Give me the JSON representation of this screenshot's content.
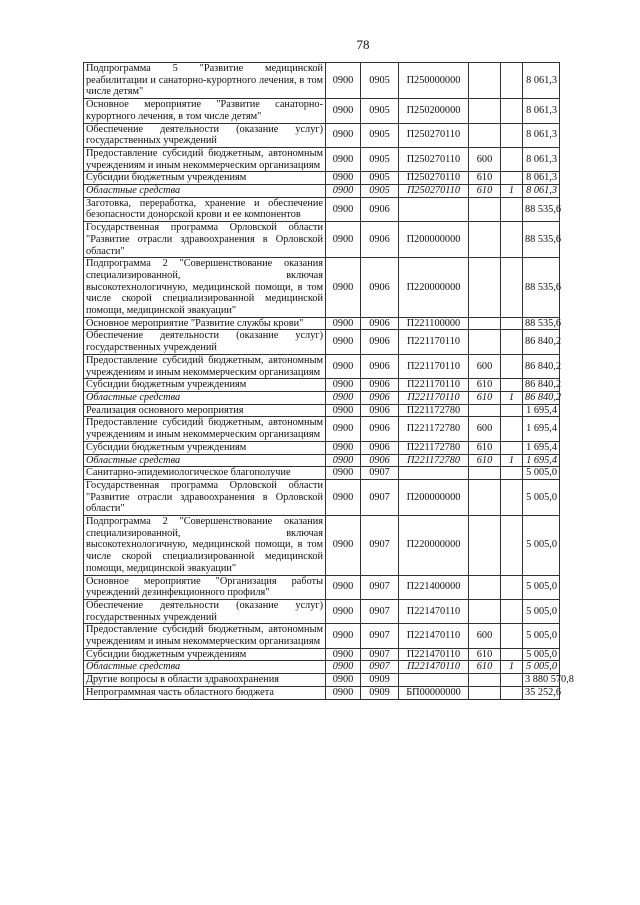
{
  "page_number": "78",
  "rows": [
    {
      "name": "Подпрограмма 5 \"Развитие медицинской реабилитации и санаторно-курортного лечения, в том числе детям\"",
      "gr": "0900",
      "rz": "0905",
      "csr": "П250000000",
      "vr": "",
      "src": "",
      "amount": "8 061,3"
    },
    {
      "name": "Основное мероприятие \"Развитие санаторно-курортного лечения, в том числе детям\"",
      "gr": "0900",
      "rz": "0905",
      "csr": "П250200000",
      "vr": "",
      "src": "",
      "amount": "8 061,3"
    },
    {
      "name": "Обеспечение деятельности (оказание услуг) государственных учреждений",
      "gr": "0900",
      "rz": "0905",
      "csr": "П250270110",
      "vr": "",
      "src": "",
      "amount": "8 061,3"
    },
    {
      "name": "Предоставление субсидий бюджетным, автономным учреждениям и иным некоммерческим организациям",
      "gr": "0900",
      "rz": "0905",
      "csr": "П250270110",
      "vr": "600",
      "src": "",
      "amount": "8 061,3"
    },
    {
      "name": "Субсидии бюджетным учреждениям",
      "gr": "0900",
      "rz": "0905",
      "csr": "П250270110",
      "vr": "610",
      "src": "",
      "amount": "8 061,3"
    },
    {
      "name": "Областные средства",
      "gr": "0900",
      "rz": "0905",
      "csr": "П250270110",
      "vr": "610",
      "src": "1",
      "amount": "8 061,3",
      "italic": true
    },
    {
      "name": "Заготовка, переработка, хранение и обеспечение безопасности донорской крови и ее компонентов",
      "gr": "0900",
      "rz": "0906",
      "csr": "",
      "vr": "",
      "src": "",
      "amount": "88 535,6"
    },
    {
      "name": "Государственная программа Орловской области \"Развитие отрасли здравоохранения в Орловской области\"",
      "gr": "0900",
      "rz": "0906",
      "csr": "П200000000",
      "vr": "",
      "src": "",
      "amount": "88 535,6"
    },
    {
      "name": "Подпрограмма 2 \"Совершенствование оказания специализированной, включая высокотехнологичную, медицинской помощи, в том числе скорой специализированной медицинской помощи, медицинской эвакуации\"",
      "gr": "0900",
      "rz": "0906",
      "csr": "П220000000",
      "vr": "",
      "src": "",
      "amount": "88 535,6"
    },
    {
      "name": "Основное мероприятие \"Развитие службы крови\"",
      "gr": "0900",
      "rz": "0906",
      "csr": "П221100000",
      "vr": "",
      "src": "",
      "amount": "88 535,6"
    },
    {
      "name": "Обеспечение деятельности (оказание услуг) государственных учреждений",
      "gr": "0900",
      "rz": "0906",
      "csr": "П221170110",
      "vr": "",
      "src": "",
      "amount": "86 840,2"
    },
    {
      "name": "Предоставление субсидий бюджетным, автономным учреждениям и иным некоммерческим организациям",
      "gr": "0900",
      "rz": "0906",
      "csr": "П221170110",
      "vr": "600",
      "src": "",
      "amount": "86 840,2"
    },
    {
      "name": "Субсидии бюджетным учреждениям",
      "gr": "0900",
      "rz": "0906",
      "csr": "П221170110",
      "vr": "610",
      "src": "",
      "amount": "86 840,2"
    },
    {
      "name": "Областные средства",
      "gr": "0900",
      "rz": "0906",
      "csr": "П221170110",
      "vr": "610",
      "src": "1",
      "amount": "86 840,2",
      "italic": true
    },
    {
      "name": "Реализация основного мероприятия",
      "gr": "0900",
      "rz": "0906",
      "csr": "П221172780",
      "vr": "",
      "src": "",
      "amount": "1 695,4"
    },
    {
      "name": "Предоставление субсидий бюджетным, автономным учреждениям и иным некоммерческим организациям",
      "gr": "0900",
      "rz": "0906",
      "csr": "П221172780",
      "vr": "600",
      "src": "",
      "amount": "1 695,4"
    },
    {
      "name": "Субсидии бюджетным учреждениям",
      "gr": "0900",
      "rz": "0906",
      "csr": "П221172780",
      "vr": "610",
      "src": "",
      "amount": "1 695,4"
    },
    {
      "name": "Областные средства",
      "gr": "0900",
      "rz": "0906",
      "csr": "П221172780",
      "vr": "610",
      "src": "1",
      "amount": "1 695,4",
      "italic": true
    },
    {
      "name": "Санитарно-эпидемиологическое благополучие",
      "gr": "0900",
      "rz": "0907",
      "csr": "",
      "vr": "",
      "src": "",
      "amount": "5 005,0"
    },
    {
      "name": "Государственная программа Орловской области \"Развитие отрасли здравоохранения в Орловской области\"",
      "gr": "0900",
      "rz": "0907",
      "csr": "П200000000",
      "vr": "",
      "src": "",
      "amount": "5 005,0"
    },
    {
      "name": "Подпрограмма 2 \"Совершенствование оказания специализированной, включая высокотехнологичную, медицинской помощи, в том числе скорой специализированной медицинской помощи, медицинской эвакуации\"",
      "gr": "0900",
      "rz": "0907",
      "csr": "П220000000",
      "vr": "",
      "src": "",
      "amount": "5 005,0"
    },
    {
      "name": "Основное мероприятие \"Организация работы учреждений дезинфекционного профиля\"",
      "gr": "0900",
      "rz": "0907",
      "csr": "П221400000",
      "vr": "",
      "src": "",
      "amount": "5 005,0"
    },
    {
      "name": "Обеспечение деятельности (оказание услуг) государственных учреждений",
      "gr": "0900",
      "rz": "0907",
      "csr": "П221470110",
      "vr": "",
      "src": "",
      "amount": "5 005,0"
    },
    {
      "name": "Предоставление субсидий бюджетным, автономным учреждениям и иным некоммерческим организациям",
      "gr": "0900",
      "rz": "0907",
      "csr": "П221470110",
      "vr": "600",
      "src": "",
      "amount": "5 005,0"
    },
    {
      "name": "Субсидии бюджетным учреждениям",
      "gr": "0900",
      "rz": "0907",
      "csr": "П221470110",
      "vr": "610",
      "src": "",
      "amount": "5 005,0"
    },
    {
      "name": "Областные средства",
      "gr": "0900",
      "rz": "0907",
      "csr": "П221470110",
      "vr": "610",
      "src": "1",
      "amount": "5 005,0",
      "italic": true
    },
    {
      "name": "Другие вопросы в области здравоохранения",
      "gr": "0900",
      "rz": "0909",
      "csr": "",
      "vr": "",
      "src": "",
      "amount": "3 880 570,8"
    },
    {
      "name": "Непрограммная часть областного бюджета",
      "gr": "0900",
      "rz": "0909",
      "csr": "БП00000000",
      "vr": "",
      "src": "",
      "amount": "35 252,6"
    }
  ]
}
